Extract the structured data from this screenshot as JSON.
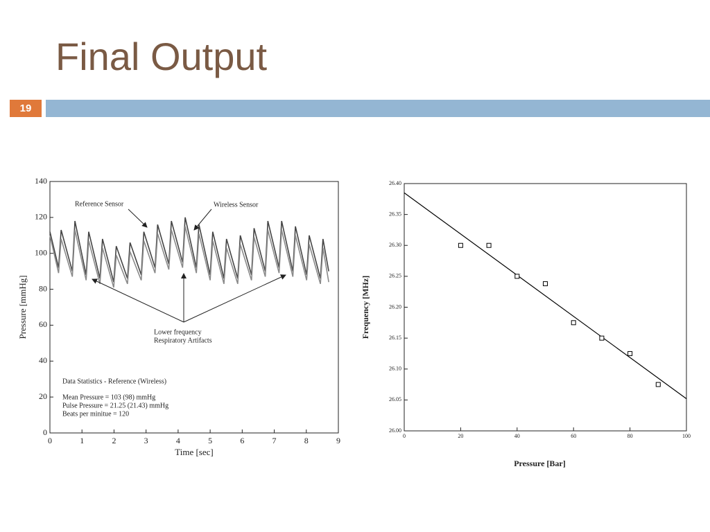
{
  "slide": {
    "title": "Final Output",
    "number": "19"
  },
  "chart_data": [
    {
      "type": "line",
      "x_label": "Time [sec]",
      "y_label": "Pressure [mmHg]",
      "x": [
        0,
        0.27,
        0.35,
        0.7,
        0.78,
        1.13,
        1.21,
        1.56,
        1.64,
        1.99,
        2.07,
        2.42,
        2.5,
        2.85,
        2.93,
        3.28,
        3.36,
        3.71,
        3.79,
        4.14,
        4.22,
        4.57,
        4.65,
        5.0,
        5.08,
        5.43,
        5.51,
        5.86,
        5.94,
        6.29,
        6.37,
        6.72,
        6.8,
        7.15,
        7.23,
        7.58,
        7.66,
        8.01,
        8.09,
        8.44,
        8.52,
        8.7
      ],
      "series": [
        {
          "name": "Reference Sensor",
          "color": "#444444",
          "values": [
            112,
            92,
            113,
            90,
            118,
            88,
            112,
            86,
            108,
            84,
            104,
            86,
            106,
            88,
            112,
            92,
            116,
            94,
            118,
            95,
            120,
            92,
            116,
            88,
            112,
            86,
            108,
            86,
            110,
            88,
            114,
            90,
            118,
            92,
            118,
            90,
            115,
            88,
            110,
            86,
            108,
            90
          ]
        },
        {
          "name": "Wireless Sensor",
          "color": "#8a8a8a",
          "values": [
            110,
            89,
            108,
            87,
            113,
            85,
            107,
            83,
            103,
            81,
            99,
            83,
            101,
            85,
            107,
            89,
            111,
            91,
            113,
            92,
            115,
            89,
            111,
            85,
            107,
            83,
            103,
            83,
            105,
            85,
            109,
            87,
            113,
            89,
            113,
            87,
            110,
            85,
            105,
            83,
            103,
            84
          ]
        }
      ],
      "annotations": [
        "Lower frequency",
        "Respiratory Artifacts",
        "Data Statistics - Reference (Wireless)",
        "Mean Pressure = 103 (98) mmHg",
        "Pulse Pressure = 21.25 (21.43) mmHg",
        "Beats per minitue = 120"
      ],
      "xlim": [
        0,
        9
      ],
      "xticks": [
        0,
        1,
        2,
        3,
        4,
        5,
        6,
        7,
        8,
        9
      ],
      "ylim": [
        0,
        140
      ],
      "yticks": [
        0,
        20,
        40,
        60,
        80,
        100,
        120,
        140
      ]
    },
    {
      "type": "scatter",
      "x_label": "Pressure [Bar]",
      "y_label": "Frequency [MHz]",
      "series": [
        {
          "color": "#000000",
          "x": [
            20,
            30,
            40,
            50,
            60,
            70,
            80,
            90
          ],
          "values": [
            26.3,
            26.3,
            26.25,
            26.238,
            26.175,
            26.15,
            26.125,
            26.075
          ]
        }
      ],
      "fit": {
        "color": "#000000",
        "x": [
          0,
          100
        ],
        "values": [
          26.385,
          26.052
        ]
      },
      "xlim": [
        0,
        100
      ],
      "xticks": [
        0,
        20,
        40,
        60,
        80,
        100
      ],
      "ylim": [
        26.0,
        26.4
      ],
      "yticks": [
        {
          "value": 26.0,
          "label": "26.00"
        },
        {
          "value": 26.05,
          "label": "26.05"
        },
        {
          "value": 26.1,
          "label": "26.10"
        },
        {
          "value": 26.15,
          "label": "26.15"
        },
        {
          "value": 26.2,
          "label": "26.20"
        },
        {
          "value": 26.25,
          "label": "26.25"
        },
        {
          "value": 26.3,
          "label": "26.30"
        },
        {
          "value": 26.35,
          "label": "26.35"
        },
        {
          "value": 26.4,
          "label": "26.40"
        }
      ]
    }
  ]
}
